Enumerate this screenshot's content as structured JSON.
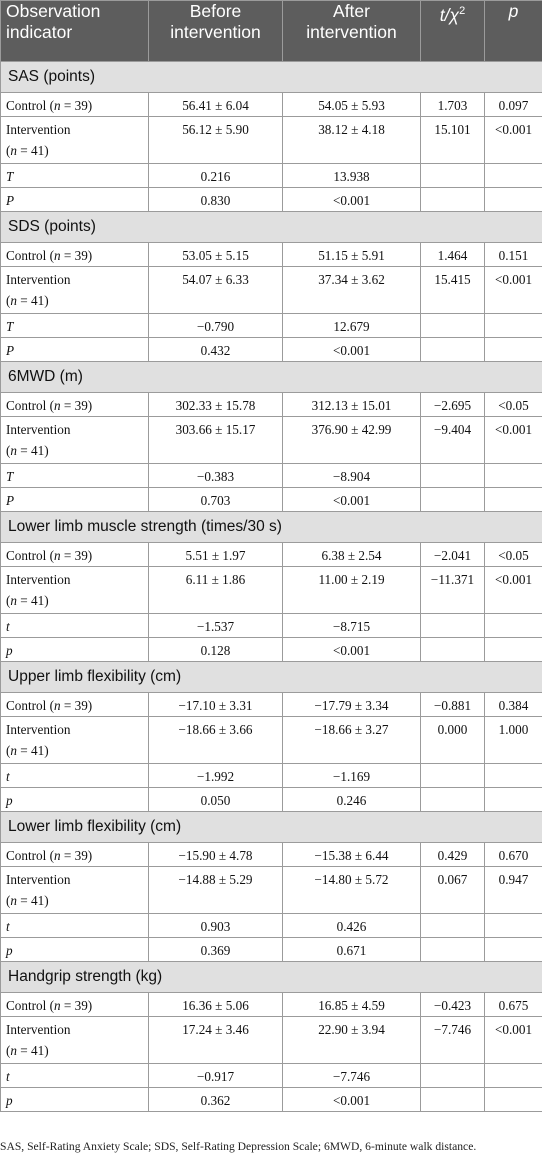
{
  "header": {
    "col1": "Observation indicator",
    "col2": "Before intervention",
    "col3": "After intervention",
    "col4_base": "t/χ",
    "col4_sup": "2",
    "col5": "p"
  },
  "sections": [
    {
      "title": "SAS (points)",
      "control_label": "Control (n = 39)",
      "intervention_label": "Intervention (n = 41)",
      "control": {
        "before": "56.41 ± 6.04",
        "after": "54.05 ± 5.93",
        "stat": "1.703",
        "p": "0.097"
      },
      "intervention": {
        "before": "56.12 ± 5.90",
        "after": "38.12 ± 4.18",
        "stat": "15.101",
        "p": "<0.001"
      },
      "stat_row": {
        "label": "T",
        "before": "0.216",
        "after": "13.938"
      },
      "p_row": {
        "label": "P",
        "before": "0.830",
        "after": "<0.001"
      }
    },
    {
      "title": "SDS (points)",
      "control": {
        "before": "53.05 ± 5.15",
        "after": "51.15 ± 5.91",
        "stat": "1.464",
        "p": "0.151"
      },
      "intervention": {
        "before": "54.07 ± 6.33",
        "after": "37.34 ± 3.62",
        "stat": "15.415",
        "p": "<0.001"
      },
      "stat_row": {
        "label": "T",
        "before": "−0.790",
        "after": "12.679"
      },
      "p_row": {
        "label": "P",
        "before": "0.432",
        "after": "<0.001"
      }
    },
    {
      "title": "6MWD (m)",
      "control": {
        "before": "302.33 ± 15.78",
        "after": "312.13 ± 15.01",
        "stat": "−2.695",
        "p": "<0.05"
      },
      "intervention": {
        "before": "303.66 ± 15.17",
        "after": "376.90 ± 42.99",
        "stat": "−9.404",
        "p": "<0.001"
      },
      "stat_row": {
        "label": "T",
        "before": "−0.383",
        "after": "−8.904"
      },
      "p_row": {
        "label": "P",
        "before": "0.703",
        "after": "<0.001"
      }
    },
    {
      "title": "Lower limb muscle strength (times/30 s)",
      "control": {
        "before": "5.51 ± 1.97",
        "after": "6.38 ± 2.54",
        "stat": "−2.041",
        "p": "<0.05"
      },
      "intervention": {
        "before": "6.11 ± 1.86",
        "after": "11.00 ± 2.19",
        "stat": "−11.371",
        "p": "<0.001"
      },
      "stat_row": {
        "label": "t",
        "before": "−1.537",
        "after": "−8.715"
      },
      "p_row": {
        "label": "p",
        "before": "0.128",
        "after": "<0.001"
      }
    },
    {
      "title": "Upper limb flexibility (cm)",
      "control": {
        "before": "−17.10 ± 3.31",
        "after": "−17.79 ± 3.34",
        "stat": "−0.881",
        "p": "0.384"
      },
      "intervention": {
        "before": "−18.66 ± 3.66",
        "after": "−18.66 ± 3.27",
        "stat": "0.000",
        "p": "1.000"
      },
      "stat_row": {
        "label": "t",
        "before": "−1.992",
        "after": "−1.169"
      },
      "p_row": {
        "label": "p",
        "before": "0.050",
        "after": "0.246"
      }
    },
    {
      "title": "Lower limb flexibility (cm)",
      "control": {
        "before": "−15.90 ± 4.78",
        "after": "−15.38 ± 6.44",
        "stat": "0.429",
        "p": "0.670"
      },
      "intervention": {
        "before": "−14.88 ± 5.29",
        "after": "−14.80 ± 5.72",
        "stat": "0.067",
        "p": "0.947"
      },
      "stat_row": {
        "label": "t",
        "before": "0.903",
        "after": "0.426"
      },
      "p_row": {
        "label": "p",
        "before": "0.369",
        "after": "0.671"
      }
    },
    {
      "title": "Handgrip strength (kg)",
      "control": {
        "before": "16.36 ± 5.06",
        "after": "16.85 ± 4.59",
        "stat": "−0.423",
        "p": "0.675"
      },
      "intervention": {
        "before": "17.24 ± 3.46",
        "after": "22.90 ± 3.94",
        "stat": "−7.746",
        "p": "<0.001"
      },
      "stat_row": {
        "label": "t",
        "before": "−0.917",
        "after": "−7.746"
      },
      "p_row": {
        "label": "p",
        "before": "0.362",
        "after": "<0.001"
      }
    }
  ],
  "group_labels": {
    "control_word": "Control (",
    "n": "n",
    "control_count": " = 39)",
    "intervention_word": "Intervention",
    "intervention_count": " = 41)",
    "open_paren": "("
  },
  "footnote": "SAS, Self-Rating Anxiety Scale; SDS, Self-Rating Depression Scale; 6MWD, 6-minute walk distance."
}
